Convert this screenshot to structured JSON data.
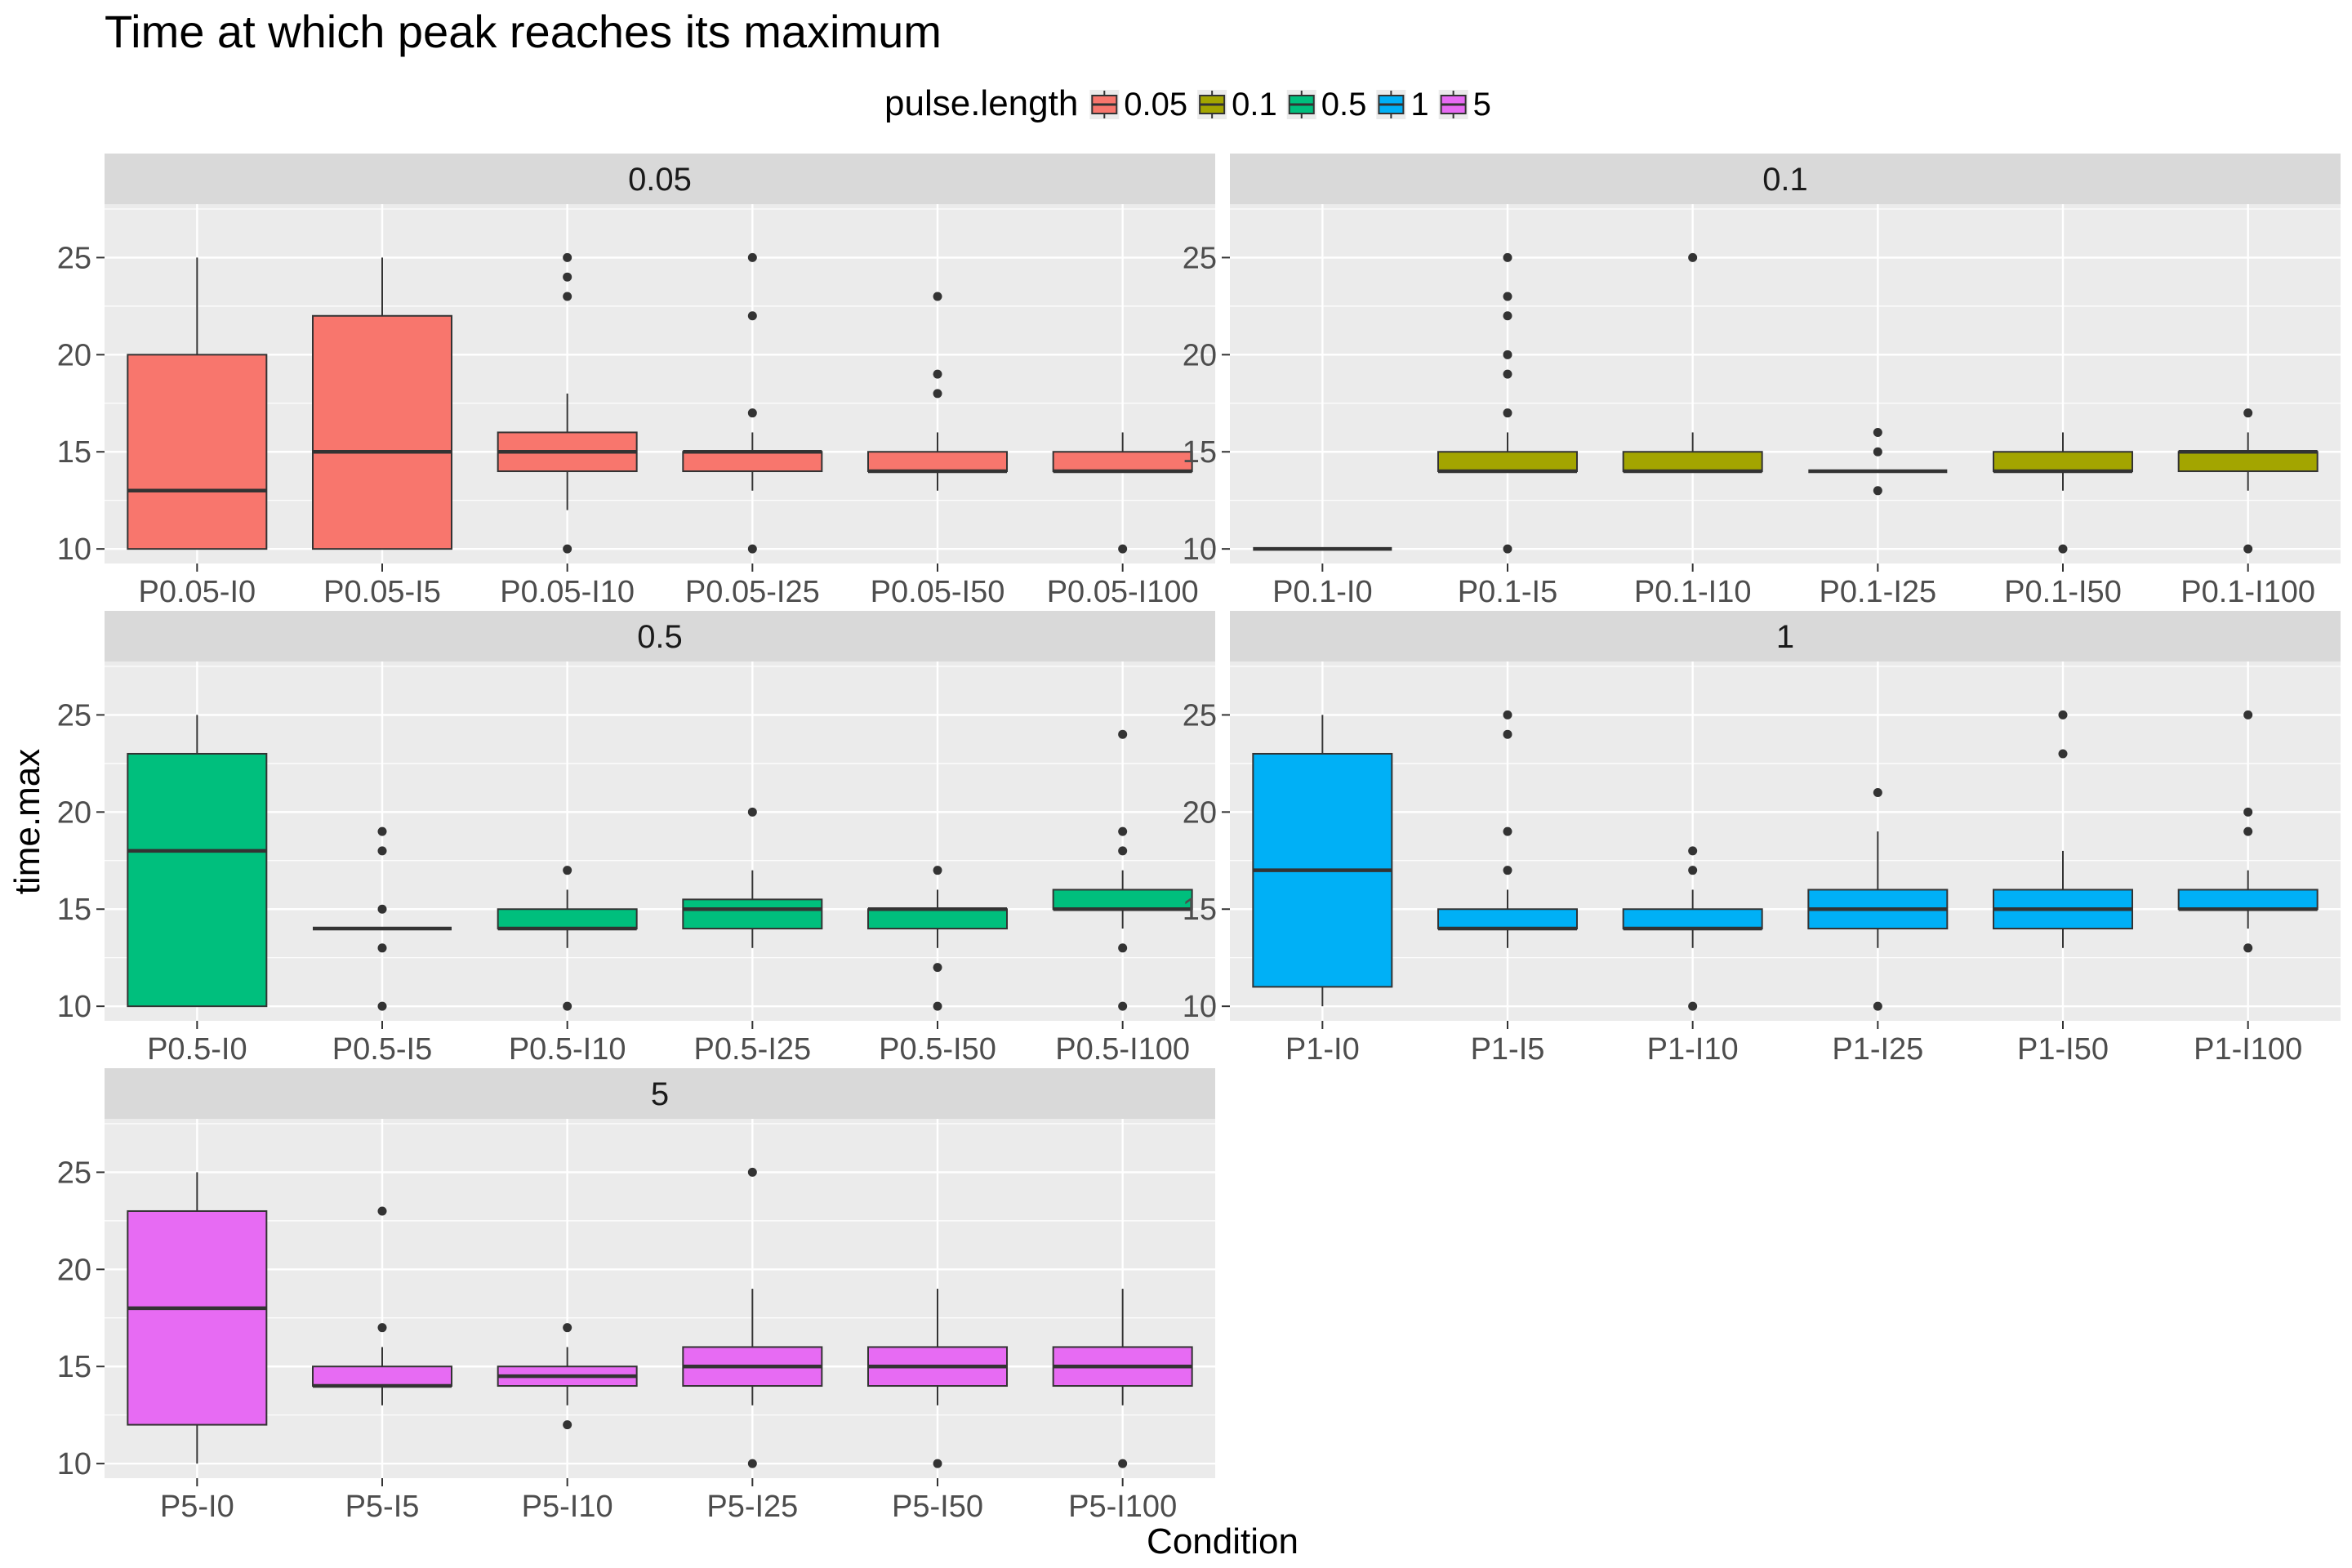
{
  "chart_data": {
    "type": "boxplot",
    "title": "Time at which peak reaches its maximum",
    "xlabel": "Condition",
    "ylabel": "time.max",
    "ylim": [
      9.25,
      27.75
    ],
    "yticks": [
      10,
      15,
      20,
      25
    ],
    "grid": true,
    "facet_layout": "wrap, 2 columns",
    "legend": {
      "title": "pulse.length",
      "position": "top",
      "entries": [
        {
          "label": "0.05",
          "color": "#F8766D"
        },
        {
          "label": "0.1",
          "color": "#A3A500"
        },
        {
          "label": "0.5",
          "color": "#00BF7D"
        },
        {
          "label": "1",
          "color": "#00B0F6"
        },
        {
          "label": "5",
          "color": "#E76BF3"
        }
      ]
    },
    "panels": [
      {
        "label": "0.05",
        "color": "#F8766D",
        "categories": [
          "P0.05-I0",
          "P0.05-I5",
          "P0.05-I10",
          "P0.05-I25",
          "P0.05-I50",
          "P0.05-I100"
        ],
        "boxes": [
          {
            "min": 10,
            "q1": 10,
            "median": 13,
            "q3": 20,
            "max": 25,
            "outliers": []
          },
          {
            "min": 10,
            "q1": 10,
            "median": 15,
            "q3": 22,
            "max": 25,
            "outliers": []
          },
          {
            "min": 12,
            "q1": 14,
            "median": 15,
            "q3": 16,
            "max": 18,
            "outliers": [
              10,
              23,
              24,
              25
            ]
          },
          {
            "min": 13,
            "q1": 14,
            "median": 15,
            "q3": 15,
            "max": 16,
            "outliers": [
              10,
              17,
              22,
              25
            ]
          },
          {
            "min": 13,
            "q1": 14,
            "median": 14,
            "q3": 15,
            "max": 16,
            "outliers": [
              18,
              19,
              23
            ]
          },
          {
            "min": 14,
            "q1": 14,
            "median": 14,
            "q3": 15,
            "max": 16,
            "outliers": [
              10
            ]
          }
        ]
      },
      {
        "label": "0.1",
        "color": "#A3A500",
        "categories": [
          "P0.1-I0",
          "P0.1-I5",
          "P0.1-I10",
          "P0.1-I25",
          "P0.1-I50",
          "P0.1-I100"
        ],
        "boxes": [
          {
            "min": 10,
            "q1": 10,
            "median": 10,
            "q3": 10,
            "max": 10,
            "outliers": []
          },
          {
            "min": 14,
            "q1": 14,
            "median": 14,
            "q3": 15,
            "max": 16,
            "outliers": [
              10,
              17,
              19,
              20,
              22,
              23,
              25
            ]
          },
          {
            "min": 14,
            "q1": 14,
            "median": 14,
            "q3": 15,
            "max": 16,
            "outliers": [
              25
            ]
          },
          {
            "min": 14,
            "q1": 14,
            "median": 14,
            "q3": 14,
            "max": 14,
            "outliers": [
              13,
              15,
              16
            ]
          },
          {
            "min": 13,
            "q1": 14,
            "median": 14,
            "q3": 15,
            "max": 16,
            "outliers": [
              10
            ]
          },
          {
            "min": 13,
            "q1": 14,
            "median": 15,
            "q3": 15,
            "max": 16,
            "outliers": [
              10,
              17
            ]
          }
        ]
      },
      {
        "label": "0.5",
        "color": "#00BF7D",
        "categories": [
          "P0.5-I0",
          "P0.5-I5",
          "P0.5-I10",
          "P0.5-I25",
          "P0.5-I50",
          "P0.5-I100"
        ],
        "boxes": [
          {
            "min": 10,
            "q1": 10,
            "median": 18,
            "q3": 23,
            "max": 25,
            "outliers": []
          },
          {
            "min": 14,
            "q1": 14,
            "median": 14,
            "q3": 14,
            "max": 14,
            "outliers": [
              10,
              13,
              15,
              18,
              19
            ]
          },
          {
            "min": 13,
            "q1": 14,
            "median": 14,
            "q3": 15,
            "max": 16,
            "outliers": [
              10,
              17
            ]
          },
          {
            "min": 13,
            "q1": 14,
            "median": 15,
            "q3": 15.5,
            "max": 17,
            "outliers": [
              20
            ]
          },
          {
            "min": 13,
            "q1": 14,
            "median": 15,
            "q3": 15,
            "max": 16,
            "outliers": [
              10,
              12,
              17
            ]
          },
          {
            "min": 14,
            "q1": 15,
            "median": 15,
            "q3": 16,
            "max": 17,
            "outliers": [
              10,
              13,
              18,
              19,
              24
            ]
          }
        ]
      },
      {
        "label": "1",
        "color": "#00B0F6",
        "categories": [
          "P1-I0",
          "P1-I5",
          "P1-I10",
          "P1-I25",
          "P1-I50",
          "P1-I100"
        ],
        "boxes": [
          {
            "min": 10,
            "q1": 11,
            "median": 17,
            "q3": 23,
            "max": 25,
            "outliers": []
          },
          {
            "min": 13,
            "q1": 14,
            "median": 14,
            "q3": 15,
            "max": 16,
            "outliers": [
              17,
              19,
              24,
              25
            ]
          },
          {
            "min": 13,
            "q1": 14,
            "median": 14,
            "q3": 15,
            "max": 16,
            "outliers": [
              10,
              17,
              18
            ]
          },
          {
            "min": 13,
            "q1": 14,
            "median": 15,
            "q3": 16,
            "max": 19,
            "outliers": [
              10,
              21
            ]
          },
          {
            "min": 13,
            "q1": 14,
            "median": 15,
            "q3": 16,
            "max": 18,
            "outliers": [
              23,
              25
            ]
          },
          {
            "min": 14,
            "q1": 15,
            "median": 15,
            "q3": 16,
            "max": 17,
            "outliers": [
              13,
              19,
              20,
              25
            ]
          }
        ]
      },
      {
        "label": "5",
        "color": "#E76BF3",
        "categories": [
          "P5-I0",
          "P5-I5",
          "P5-I10",
          "P5-I25",
          "P5-I50",
          "P5-I100"
        ],
        "boxes": [
          {
            "min": 10,
            "q1": 12,
            "median": 18,
            "q3": 23,
            "max": 25,
            "outliers": []
          },
          {
            "min": 13,
            "q1": 14,
            "median": 14,
            "q3": 15,
            "max": 16,
            "outliers": [
              17,
              23
            ]
          },
          {
            "min": 13,
            "q1": 14,
            "median": 14.5,
            "q3": 15,
            "max": 16,
            "outliers": [
              12,
              17
            ]
          },
          {
            "min": 13,
            "q1": 14,
            "median": 15,
            "q3": 16,
            "max": 19,
            "outliers": [
              10,
              25
            ]
          },
          {
            "min": 13,
            "q1": 14,
            "median": 15,
            "q3": 16,
            "max": 19,
            "outliers": [
              10
            ]
          },
          {
            "min": 13,
            "q1": 14,
            "median": 15,
            "q3": 16,
            "max": 19,
            "outliers": [
              10
            ]
          }
        ]
      }
    ]
  }
}
